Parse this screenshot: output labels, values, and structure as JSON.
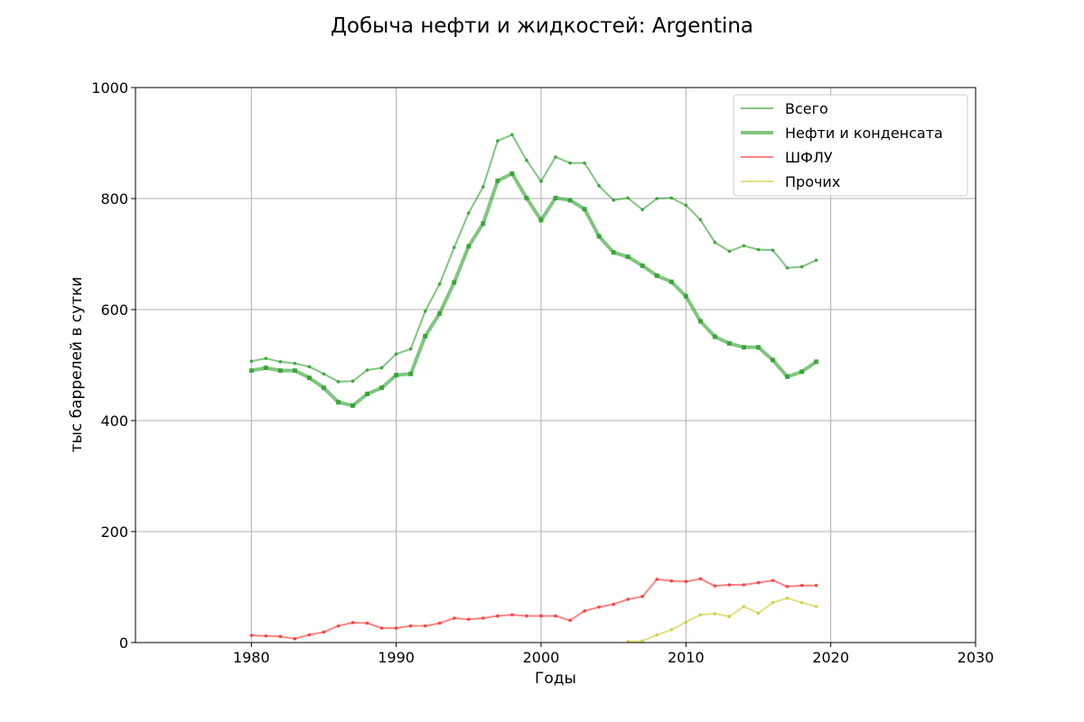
{
  "chart_data": {
    "type": "line",
    "title": "Добыча нефти и жидкостей: Argentina",
    "xlabel": "Годы",
    "ylabel": "тыс баррелей в сутки",
    "xlim": [
      1972,
      2030
    ],
    "ylim": [
      0,
      1000
    ],
    "xticks": [
      1980,
      1990,
      2000,
      2010,
      2020,
      2030
    ],
    "yticks": [
      0,
      200,
      400,
      600,
      800,
      1000
    ],
    "grid": true,
    "legend_position": "top-right",
    "series": [
      {
        "name": "Всего",
        "color": "#2ca02c",
        "style": "thin",
        "x": [
          1980,
          1981,
          1982,
          1983,
          1984,
          1985,
          1986,
          1987,
          1988,
          1989,
          1990,
          1991,
          1992,
          1993,
          1994,
          1995,
          1996,
          1997,
          1998,
          1999,
          2000,
          2001,
          2002,
          2003,
          2004,
          2005,
          2006,
          2007,
          2008,
          2009,
          2010,
          2011,
          2012,
          2013,
          2014,
          2015,
          2016,
          2017,
          2018,
          2019
        ],
        "y": [
          507,
          512,
          506,
          503,
          497,
          484,
          470,
          471,
          491,
          495,
          520,
          529,
          597,
          646,
          712,
          774,
          821,
          904,
          915,
          869,
          831,
          875,
          864,
          864,
          823,
          797,
          801,
          780,
          800,
          801,
          788,
          762,
          721,
          705,
          715,
          708,
          707,
          675,
          677,
          689
        ]
      },
      {
        "name": "Нефти и конденсата",
        "color": "#2ca02c",
        "style": "thick",
        "x": [
          1980,
          1981,
          1982,
          1983,
          1984,
          1985,
          1986,
          1987,
          1988,
          1989,
          1990,
          1991,
          1992,
          1993,
          1994,
          1995,
          1996,
          1997,
          1998,
          1999,
          2000,
          2001,
          2002,
          2003,
          2004,
          2005,
          2006,
          2007,
          2008,
          2009,
          2010,
          2011,
          2012,
          2013,
          2014,
          2015,
          2016,
          2017,
          2018,
          2019
        ],
        "y": [
          490,
          495,
          490,
          490,
          477,
          459,
          433,
          427,
          448,
          459,
          482,
          484,
          552,
          593,
          649,
          714,
          755,
          832,
          845,
          801,
          761,
          801,
          797,
          781,
          732,
          703,
          695,
          679,
          661,
          650,
          624,
          579,
          551,
          539,
          532,
          532,
          509,
          479,
          488,
          506
        ]
      },
      {
        "name": "ШФЛУ",
        "color": "#ff3333",
        "style": "thin",
        "x": [
          1980,
          1981,
          1982,
          1983,
          1984,
          1985,
          1986,
          1987,
          1988,
          1989,
          1990,
          1991,
          1992,
          1993,
          1994,
          1995,
          1996,
          1997,
          1998,
          1999,
          2000,
          2001,
          2002,
          2003,
          2004,
          2005,
          2006,
          2007,
          2008,
          2009,
          2010,
          2011,
          2012,
          2013,
          2014,
          2015,
          2016,
          2017,
          2018,
          2019
        ],
        "y": [
          13,
          12,
          11,
          7,
          14,
          19,
          30,
          36,
          35,
          26,
          26,
          30,
          30,
          35,
          44,
          42,
          44,
          48,
          50,
          48,
          48,
          48,
          40,
          57,
          64,
          69,
          78,
          83,
          114,
          111,
          110,
          115,
          102,
          104,
          104,
          108,
          112,
          101,
          103,
          103
        ]
      },
      {
        "name": "Прочих",
        "color": "#cccc33",
        "style": "thin",
        "x": [
          2006,
          2007,
          2008,
          2009,
          2010,
          2011,
          2012,
          2013,
          2014,
          2015,
          2016,
          2017,
          2018,
          2019
        ],
        "y": [
          2,
          3,
          14,
          23,
          37,
          50,
          52,
          47,
          65,
          53,
          72,
          80,
          72,
          65
        ]
      }
    ]
  }
}
